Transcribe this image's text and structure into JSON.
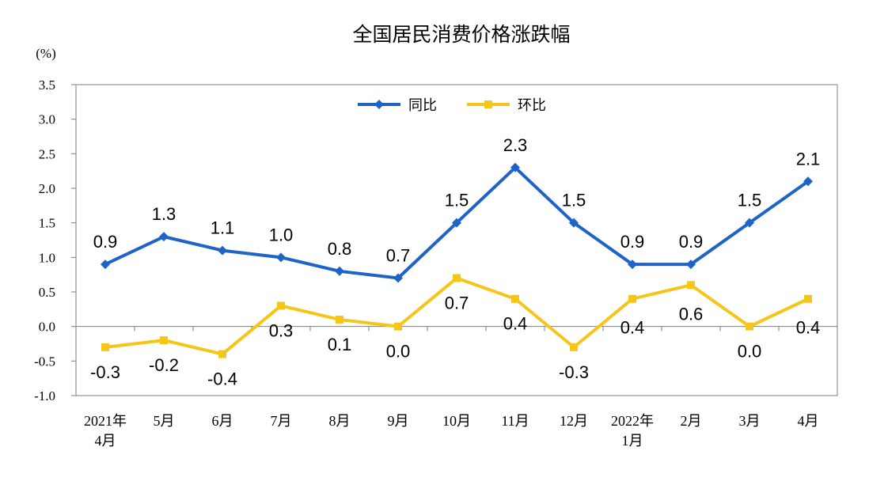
{
  "chart_data": {
    "type": "line",
    "title": "全国居民消费价格涨跌幅",
    "unit_label": "(%)",
    "categories": [
      [
        "2021年",
        "4月"
      ],
      [
        "5月"
      ],
      [
        "6月"
      ],
      [
        "7月"
      ],
      [
        "8月"
      ],
      [
        "9月"
      ],
      [
        "10月"
      ],
      [
        "11月"
      ],
      [
        "12月"
      ],
      [
        "2022年",
        "1月"
      ],
      [
        "2月"
      ],
      [
        "3月"
      ],
      [
        "4月"
      ]
    ],
    "series": [
      {
        "name": "同比",
        "color": "#1f63c8",
        "marker": "diamond",
        "values": [
          0.9,
          1.3,
          1.1,
          1.0,
          0.8,
          0.7,
          1.5,
          2.3,
          1.5,
          0.9,
          0.9,
          1.5,
          2.1
        ],
        "labels": [
          "0.9",
          "1.3",
          "1.1",
          "1.0",
          "0.8",
          "0.7",
          "1.5",
          "2.3",
          "1.5",
          "0.9",
          "0.9",
          "1.5",
          "2.1"
        ]
      },
      {
        "name": "环比",
        "color": "#f5c518",
        "marker": "square",
        "values": [
          -0.3,
          -0.2,
          -0.4,
          0.3,
          0.1,
          0.0,
          0.7,
          0.4,
          -0.3,
          0.4,
          0.6,
          0.0,
          0.4
        ],
        "labels": [
          "-0.3",
          "-0.2",
          "-0.4",
          "0.3",
          "0.1",
          "0.0",
          "0.7",
          "0.4",
          "-0.3",
          "0.4",
          "0.6",
          "0.0",
          "0.4"
        ]
      }
    ],
    "ylim": [
      -1.0,
      3.5
    ],
    "yticks": [
      "3.5",
      "3.0",
      "2.5",
      "2.0",
      "1.5",
      "1.0",
      "0.5",
      "0.0",
      "-0.5",
      "-1.0"
    ],
    "grid": false,
    "legend_position": "top-center"
  }
}
